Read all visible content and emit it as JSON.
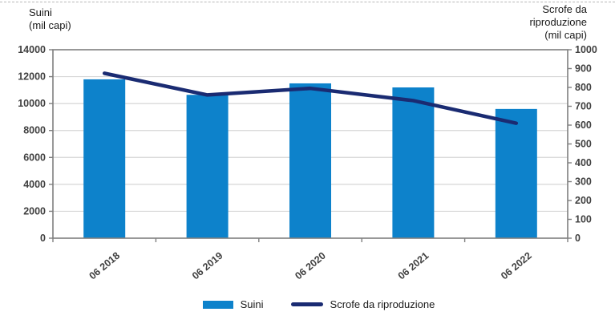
{
  "chart_data": {
    "type": "bar+line",
    "categories": [
      "06 2018",
      "06 2019",
      "06 2020",
      "06 2021",
      "06 2022"
    ],
    "series": [
      {
        "name": "Suini",
        "type": "bar",
        "axis": "left",
        "color": "#0d82cb",
        "values": [
          11800,
          10650,
          11500,
          11200,
          9600
        ]
      },
      {
        "name": "Scrofe da riproduzione",
        "type": "line",
        "axis": "right",
        "color": "#1a2b72",
        "values": [
          875,
          760,
          795,
          730,
          610
        ]
      }
    ],
    "left_axis": {
      "title": "Suini\n(mil capi)",
      "min": 0,
      "max": 14000,
      "tick_step": 2000,
      "tick_labels": [
        "0",
        "2000",
        "4000",
        "6000",
        "8000",
        "10000",
        "12000",
        "14000"
      ]
    },
    "right_axis": {
      "title": "Scrofe da\nriproduzione\n(mil capi)",
      "min": 0,
      "max": 1000,
      "tick_step": 100,
      "tick_labels": [
        "0",
        "100",
        "200",
        "300",
        "400",
        "500",
        "600",
        "700",
        "800",
        "900",
        "1000"
      ]
    },
    "grid": {
      "gridline_step_left_axis": 2000,
      "gridline_color": "#d6d6d6",
      "border_color": "#7f7f7f",
      "tick_label_color": "#404040"
    },
    "legend": {
      "position": "bottom-center",
      "items": [
        {
          "label": "Suini",
          "swatch": "bar"
        },
        {
          "label": "Scrofe da riproduzione",
          "swatch": "line"
        }
      ]
    }
  }
}
